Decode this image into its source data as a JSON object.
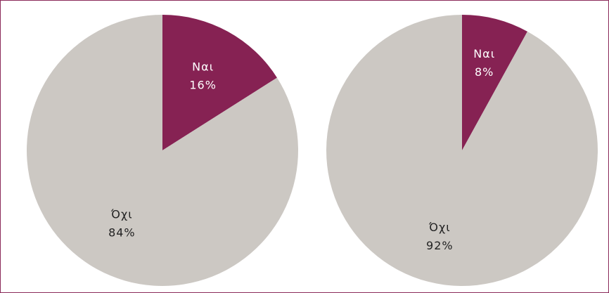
{
  "chart_data": [
    {
      "type": "pie",
      "categories": [
        "Ναι",
        "Όχι"
      ],
      "values": [
        16,
        84
      ],
      "value_labels": [
        "16%",
        "84%"
      ],
      "colors": [
        "#862253",
        "#ccc8c3"
      ]
    },
    {
      "type": "pie",
      "categories": [
        "Ναι",
        "Όχι"
      ],
      "values": [
        8,
        92
      ],
      "value_labels": [
        "8%",
        "92%"
      ],
      "colors": [
        "#862253",
        "#ccc8c3"
      ]
    }
  ]
}
